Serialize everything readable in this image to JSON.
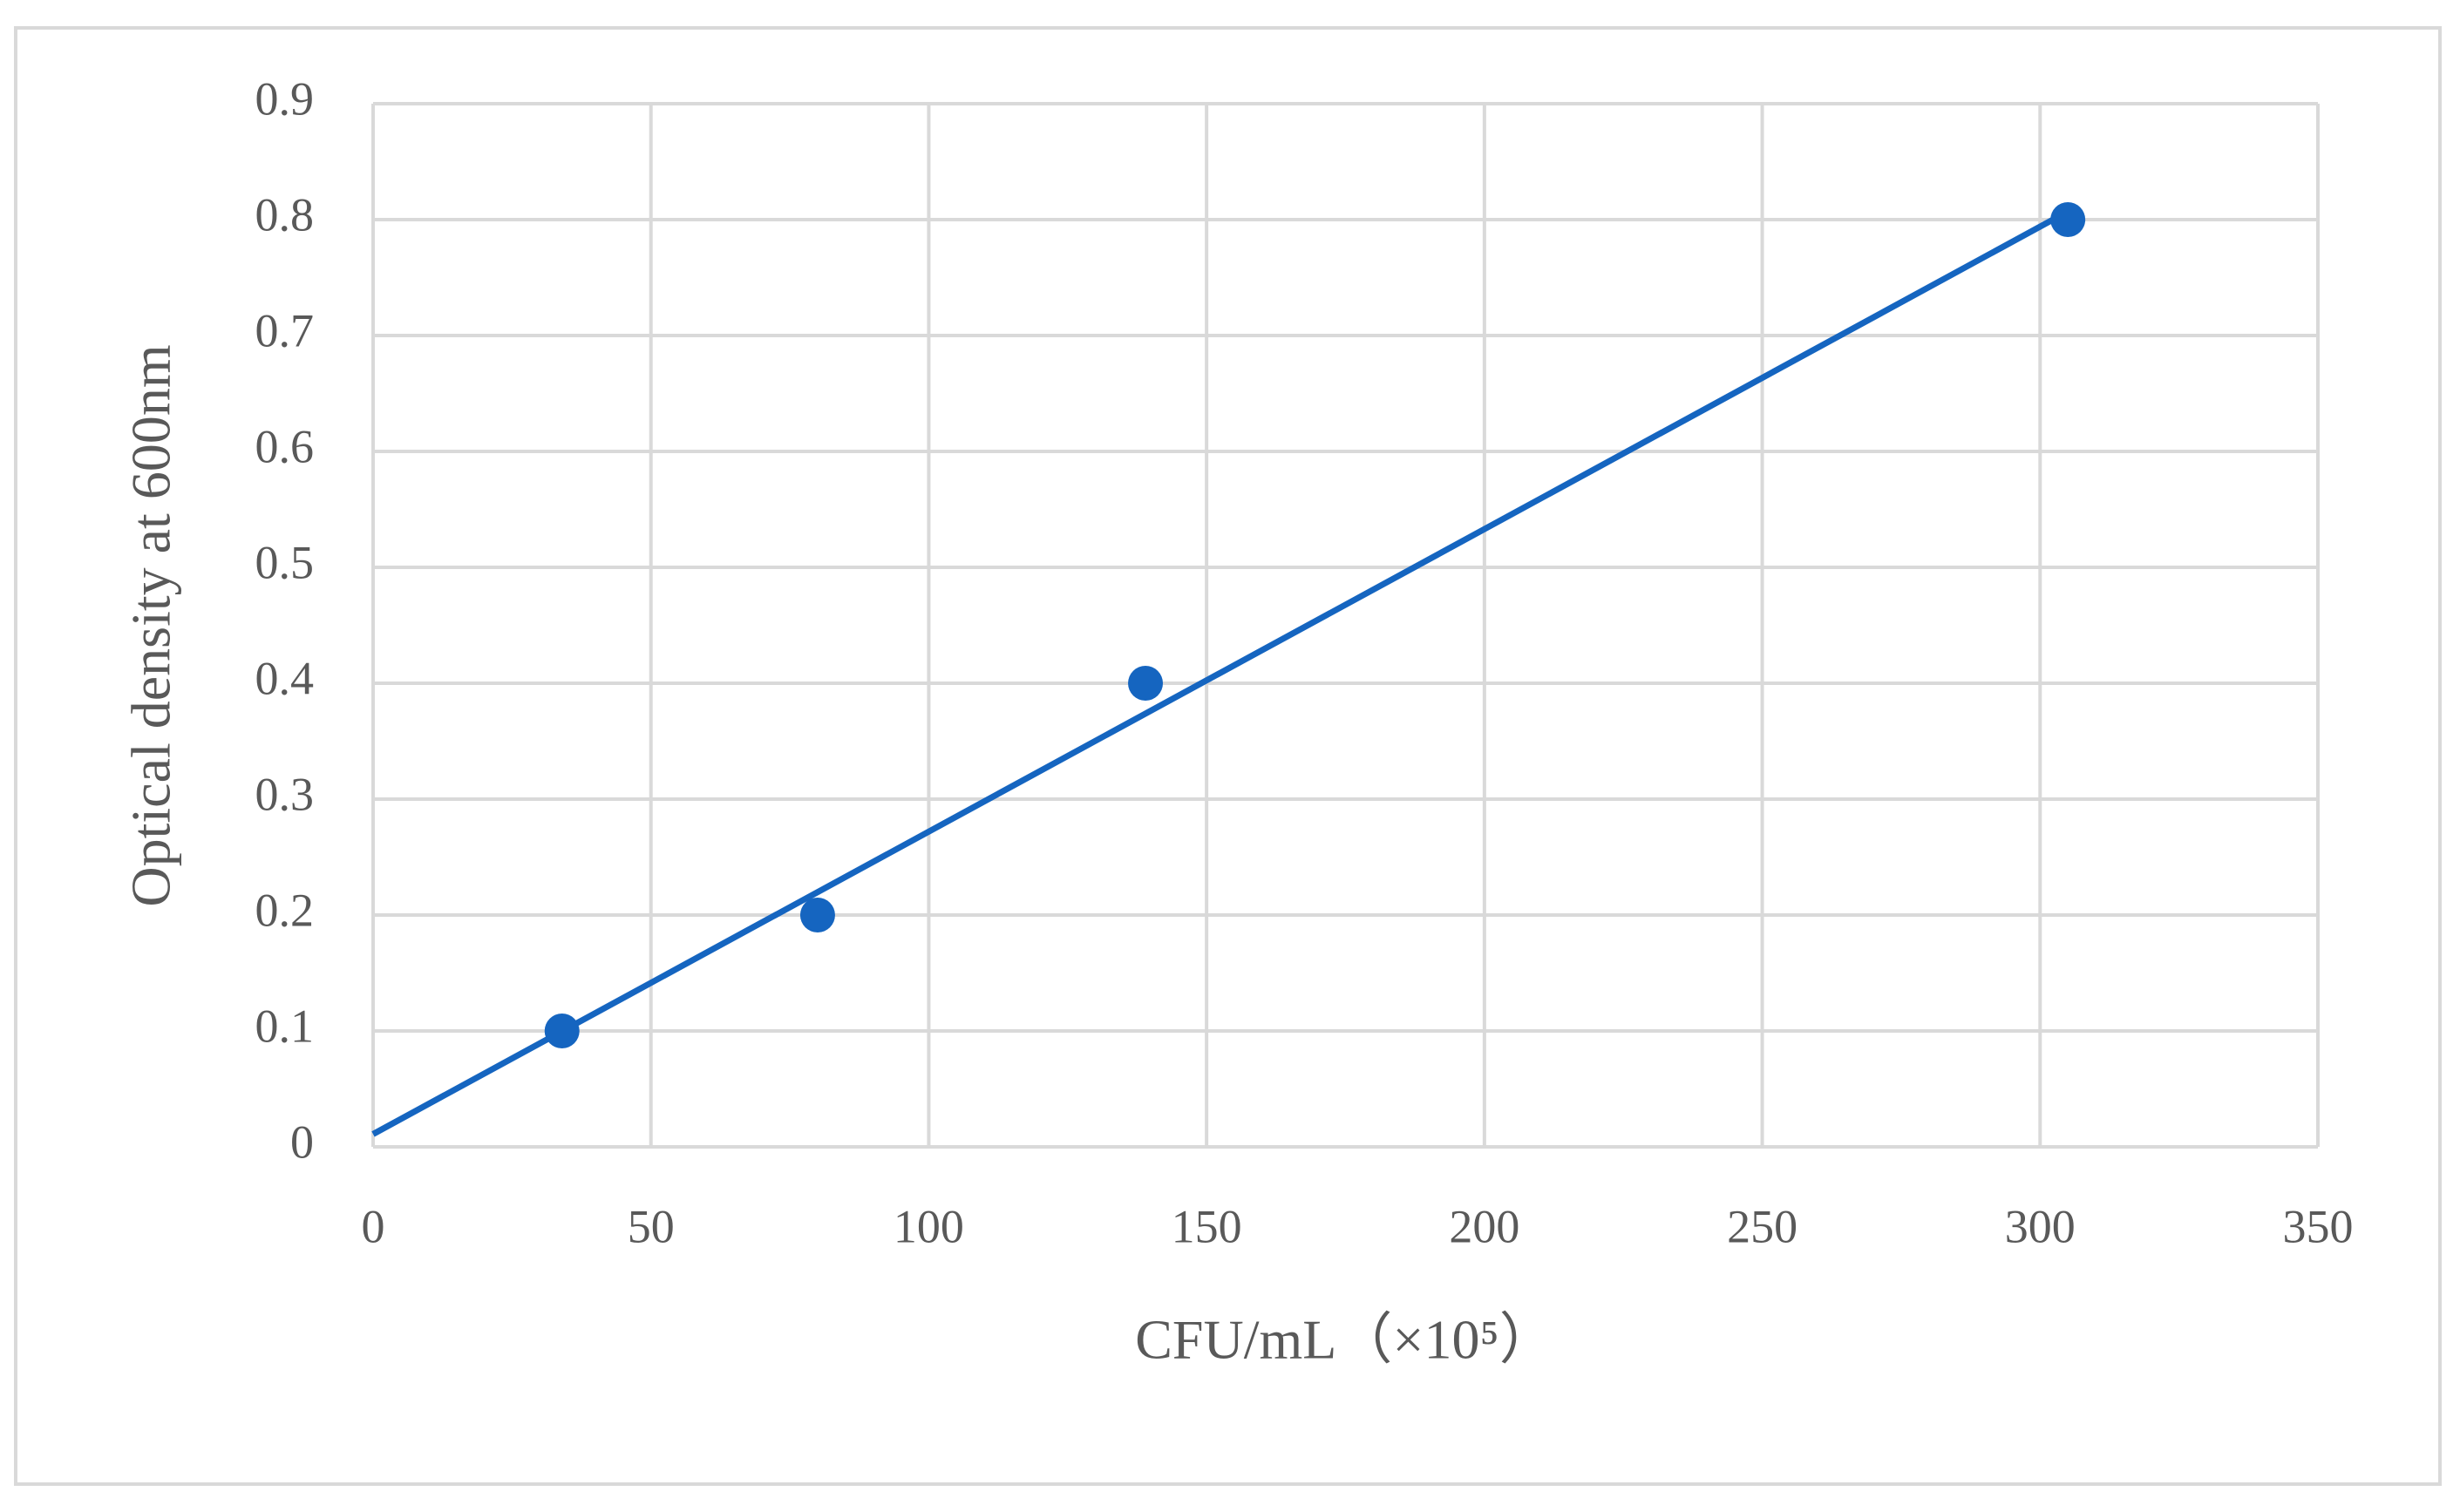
{
  "chart_data": {
    "type": "scatter",
    "xlabel": "CFU/mL（×10⁵）",
    "ylabel": "Optical density at 600nm",
    "series": [
      {
        "x": [
          34,
          80,
          139,
          305
        ],
        "values": [
          0.1,
          0.2,
          0.4,
          0.8
        ],
        "color": "#1565c0"
      }
    ],
    "trendline": {
      "x": [
        0,
        305
      ],
      "values": [
        0.011,
        0.807
      ],
      "color": "#1565c0"
    },
    "xlim": [
      0,
      350
    ],
    "xticks": [
      0,
      50,
      100,
      150,
      200,
      250,
      300,
      350
    ],
    "ylim": [
      0,
      0.9
    ],
    "yticks": [
      0,
      0.1,
      0.2,
      0.3,
      0.4,
      0.5,
      0.6,
      0.7,
      0.8,
      0.9
    ],
    "grid": true
  }
}
